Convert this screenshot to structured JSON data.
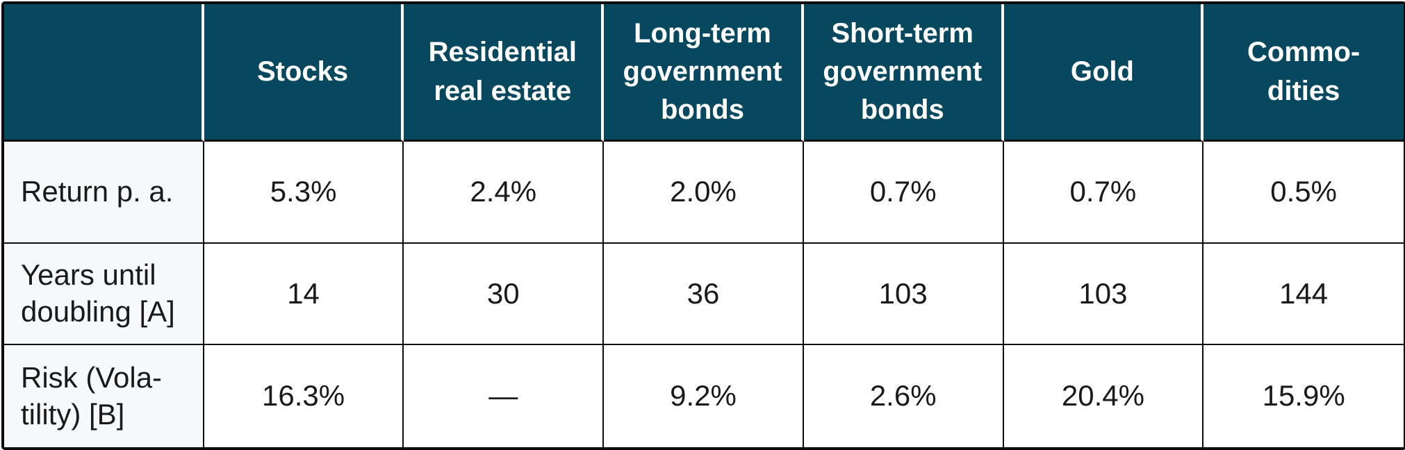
{
  "table": {
    "columns": [
      "",
      "Stocks",
      "Residential\nreal estate",
      "Long-term\ngovernment\nbonds",
      "Short-term\ngovernment\nbonds",
      "Gold",
      "Commo-\ndities"
    ],
    "rows": [
      {
        "label": "Return p. a.",
        "values": [
          "5.3%",
          "2.4%",
          "2.0%",
          "0.7%",
          "0.7%",
          "0.5%"
        ]
      },
      {
        "label": "Years until\ndoubling [A]",
        "values": [
          "14",
          "30",
          "36",
          "103",
          "103",
          "144"
        ]
      },
      {
        "label": "Risk (Vola-\ntility) [B]",
        "values": [
          "16.3%",
          "—",
          "9.2%",
          "2.6%",
          "20.4%",
          "15.9%"
        ]
      }
    ]
  },
  "chart_data": {
    "type": "table",
    "title": "",
    "categories": [
      "Stocks",
      "Residential real estate",
      "Long-term government bonds",
      "Short-term government bonds",
      "Gold",
      "Commodities"
    ],
    "series": [
      {
        "name": "Return p. a.",
        "values": [
          "5.3%",
          "2.4%",
          "2.0%",
          "0.7%",
          "0.7%",
          "0.5%"
        ]
      },
      {
        "name": "Years until doubling [A]",
        "values": [
          14,
          30,
          36,
          103,
          103,
          144
        ]
      },
      {
        "name": "Risk (Volatility) [B]",
        "values": [
          "16.3%",
          "—",
          "9.2%",
          "2.6%",
          "20.4%",
          "15.9%"
        ]
      }
    ]
  },
  "colors": {
    "header_background": "#07485f",
    "header_text": "#ffffff",
    "row_label_background": "#f5f9fc",
    "body_background": "#ffffff",
    "border": "#0d0d0d",
    "body_text": "#1a1a1a"
  }
}
